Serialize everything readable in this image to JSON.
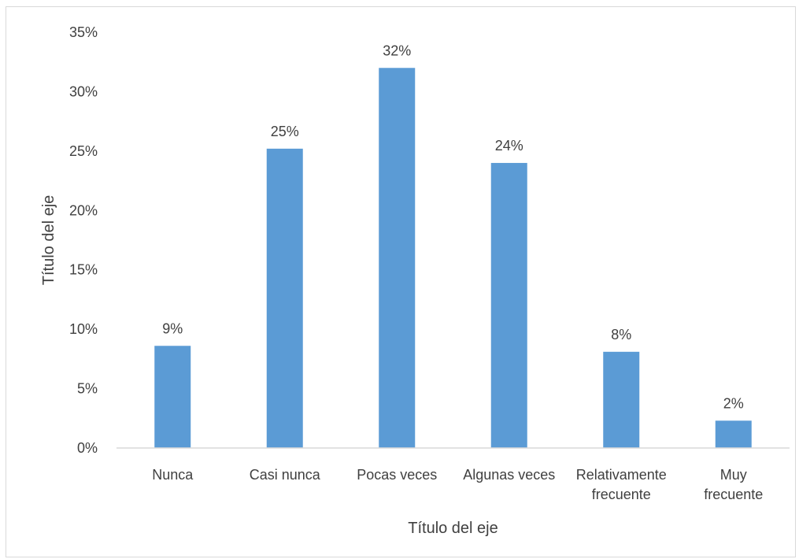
{
  "chart_data": {
    "type": "bar",
    "title": "",
    "xlabel": "Título del eje",
    "ylabel": "Título del eje",
    "categories": [
      [
        "Nunca"
      ],
      [
        "Casi nunca"
      ],
      [
        "Pocas veces"
      ],
      [
        "Algunas veces"
      ],
      [
        "Relativamente",
        "frecuente"
      ],
      [
        "Muy",
        "frecuente"
      ]
    ],
    "values": [
      8.6,
      25.2,
      32.0,
      24.0,
      8.1,
      2.3
    ],
    "data_labels": [
      "9%",
      "25%",
      "32%",
      "24%",
      "8%",
      "2%"
    ],
    "ylim": [
      0,
      35
    ],
    "y_ticks": [
      0,
      5,
      10,
      15,
      20,
      25,
      30,
      35
    ],
    "y_tick_labels": [
      "0%",
      "5%",
      "10%",
      "15%",
      "20%",
      "25%",
      "30%",
      "35%"
    ],
    "grid": false,
    "legend": "none",
    "bar_color": "#5b9bd5",
    "axis_color": "#d9d9d9",
    "text_color": "#404040"
  }
}
